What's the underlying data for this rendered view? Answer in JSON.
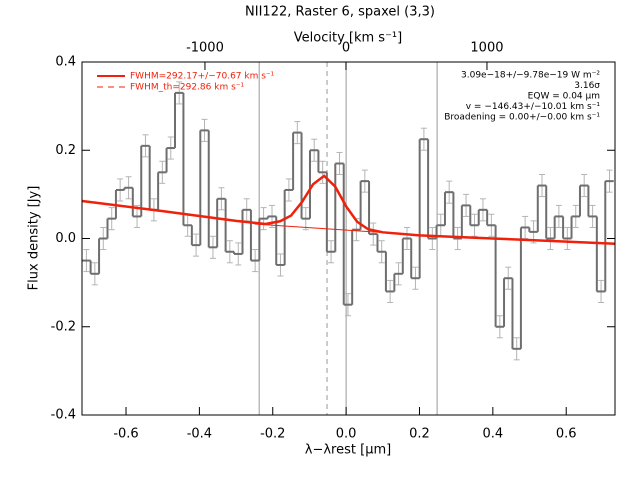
{
  "chart_data": {
    "type": "step",
    "title": "NII122, Raster 6, spaxel (3,3)",
    "x_label": "λ−λrest [μm]",
    "x2_label": "Velocity [km s⁻¹]",
    "y_label": "Flux density [Jy]",
    "xlim": [
      -0.72,
      0.733
    ],
    "x2lim": [
      -1872,
      1908
    ],
    "ylim": [
      -0.4,
      0.4
    ],
    "xticks": [
      -0.6,
      -0.4,
      -0.2,
      {
        "value": 0,
        "label": "0.0"
      },
      0.2,
      0.4,
      0.6
    ],
    "x2ticks": [
      -1000,
      0,
      1000
    ],
    "yticks": [
      -0.4,
      -0.2,
      {
        "value": 0,
        "label": "0.0"
      },
      0.2,
      0.4
    ],
    "legend": "upper left",
    "x": [
      -0.708,
      -0.685,
      -0.662,
      -0.639,
      -0.616,
      -0.593,
      -0.57,
      -0.547,
      -0.524,
      -0.501,
      -0.478,
      -0.455,
      -0.432,
      -0.409,
      -0.386,
      -0.363,
      -0.34,
      -0.317,
      -0.294,
      -0.271,
      -0.248,
      -0.225,
      -0.202,
      -0.179,
      -0.156,
      -0.133,
      -0.11,
      -0.087,
      -0.064,
      -0.041,
      -0.018,
      0.005,
      0.028,
      0.051,
      0.074,
      0.097,
      0.12,
      0.143,
      0.166,
      0.189,
      0.212,
      0.235,
      0.258,
      0.281,
      0.304,
      0.327,
      0.35,
      0.373,
      0.396,
      0.419,
      0.442,
      0.465,
      0.488,
      0.511,
      0.534,
      0.557,
      0.58,
      0.603,
      0.626,
      0.649,
      0.672,
      0.695,
      0.718
    ],
    "values": [
      -0.05,
      -0.08,
      0,
      0.045,
      0.11,
      0.115,
      0.05,
      0.21,
      0.065,
      0.15,
      0.205,
      0.33,
      0.03,
      -0.015,
      0.245,
      -0.02,
      0.09,
      -0.03,
      -0.035,
      0.065,
      -0.05,
      0.045,
      0.05,
      -0.06,
      0.11,
      0.24,
      0.045,
      0.2,
      0.15,
      -0.03,
      0.17,
      -0.15,
      0.02,
      0.13,
      0.01,
      -0.03,
      -0.12,
      -0.08,
      0,
      -0.09,
      0.225,
      0,
      0.03,
      0.105,
      0,
      0.075,
      0.03,
      0.065,
      0.03,
      -0.2,
      -0.09,
      -0.25,
      0.025,
      0.015,
      0.12,
      0,
      0.05,
      0,
      0.05,
      0.12,
      0.05,
      -0.12,
      0.13
    ],
    "errors": [
      0.025,
      0.025,
      0.025,
      0.025,
      0.025,
      0.025,
      0.025,
      0.025,
      0.025,
      0.025,
      0.025,
      0.025,
      0.025,
      0.025,
      0.025,
      0.025,
      0.025,
      0.025,
      0.025,
      0.025,
      0.025,
      0.025,
      0.025,
      0.025,
      0.025,
      0.025,
      0.025,
      0.025,
      0.025,
      0.025,
      0.025,
      0.025,
      0.025,
      0.025,
      0.025,
      0.025,
      0.025,
      0.025,
      0.025,
      0.025,
      0.025,
      0.025,
      0.025,
      0.025,
      0.025,
      0.025,
      0.025,
      0.025,
      0.025,
      0.025,
      0.025,
      0.025,
      0.025,
      0.025,
      0.025,
      0.025,
      0.025,
      0.025,
      0.025,
      0.025,
      0.025,
      0.025,
      0.025
    ],
    "color": "#6e6e6e",
    "error_color": "#b4b4b4",
    "series": [
      {
        "name": "FWHM=292.17+/−70.67 km s⁻¹",
        "color": "#f0200a",
        "dash": false,
        "x": [
          -0.72,
          -0.5,
          -0.3,
          -0.22,
          -0.18,
          -0.15,
          -0.12,
          -0.09,
          -0.06,
          -0.03,
          0,
          0.03,
          0.06,
          0.1,
          0.2,
          0.4,
          0.6,
          0.733
        ],
        "values": [
          0.085,
          0.062,
          0.04,
          0.033,
          0.039,
          0.052,
          0.083,
          0.123,
          0.142,
          0.118,
          0.073,
          0.038,
          0.021,
          0.014,
          0.007,
          0,
          -0.007,
          -0.012
        ]
      },
      {
        "name": "FWHM_th=292.86 km s⁻¹",
        "color": "#f0200a",
        "dash": true,
        "x": [
          -0.25,
          0.1
        ],
        "values": [
          0.033,
          0.0135
        ]
      }
    ],
    "vlines": [
      -0.237,
      0,
      0.248
    ],
    "center_line": -0.052,
    "annotations": [
      "3.09e−18+/−9.78e−19 W m⁻²",
      "3.16σ",
      "EQW = 0.04 μm",
      "v = −146.43+/−10.01 km s⁻¹",
      "Broadening = 0.00+/−0.00 km s⁻¹"
    ]
  }
}
